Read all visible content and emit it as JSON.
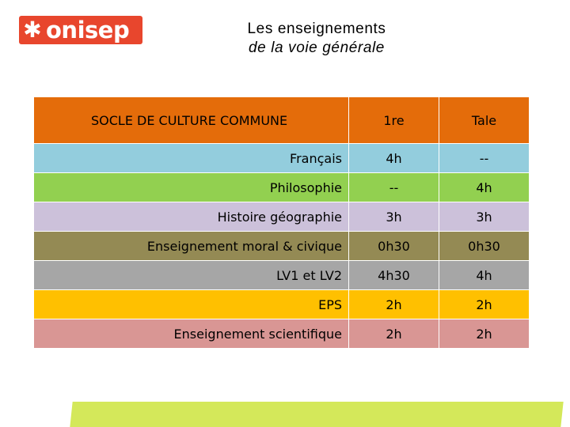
{
  "logo": {
    "text": "onisep"
  },
  "title": {
    "line1": "Les enseignements",
    "line2": "de la voie générale"
  },
  "table": {
    "header": {
      "subject": "SOCLE DE CULTURE COMMUNE",
      "col1": "1re",
      "col2": "Tale",
      "color": "#e46c0a"
    },
    "rows": [
      {
        "subject": "Français",
        "v1": "4h",
        "v2": "--",
        "color": "#93cddd"
      },
      {
        "subject": "Philosophie",
        "v1": "--",
        "v2": "4h",
        "color": "#92d050"
      },
      {
        "subject": "Histoire géographie",
        "v1": "3h",
        "v2": "3h",
        "color": "#ccc1da"
      },
      {
        "subject": "Enseignement moral & civique",
        "v1": "0h30",
        "v2": "0h30",
        "color": "#948a54"
      },
      {
        "subject": "LV1 et LV2",
        "v1": "4h30",
        "v2": "4h",
        "color": "#a6a6a6"
      },
      {
        "subject": "EPS",
        "v1": "2h",
        "v2": "2h",
        "color": "#ffc000"
      },
      {
        "subject": "Enseignement scientifique",
        "v1": "2h",
        "v2": "2h",
        "color": "#d99694"
      }
    ]
  }
}
